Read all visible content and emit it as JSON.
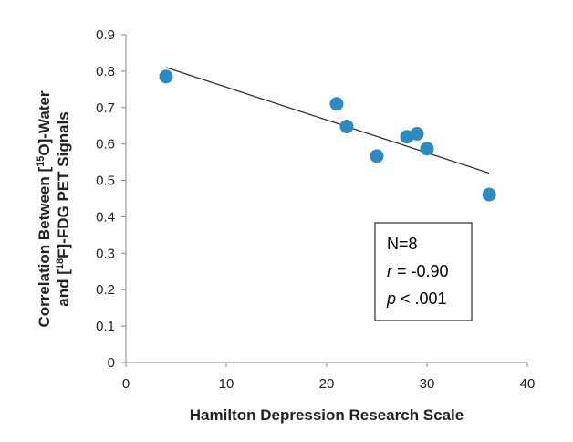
{
  "chart_data": {
    "type": "scatter",
    "title": "",
    "xlabel": "Hamilton Depression Research Scale",
    "ylabel": {
      "line1": [
        "Correlation Between [",
        "15",
        "O]-Water"
      ],
      "line2": [
        "and [",
        "18",
        "F]-FDG PET Signals"
      ]
    },
    "xlim": [
      0,
      40
    ],
    "ylim": [
      0,
      0.9
    ],
    "xticks": [
      "0",
      "10",
      "20",
      "30",
      "40"
    ],
    "yticks": [
      "0",
      "0.1",
      "0.2",
      "0.3",
      "0.4",
      "0.5",
      "0.6",
      "0.7",
      "0.8",
      "0.9"
    ],
    "points": [
      {
        "x": 4,
        "y": 0.785
      },
      {
        "x": 21,
        "y": 0.71
      },
      {
        "x": 22,
        "y": 0.648
      },
      {
        "x": 25,
        "y": 0.567
      },
      {
        "x": 28,
        "y": 0.62
      },
      {
        "x": 29,
        "y": 0.628
      },
      {
        "x": 30,
        "y": 0.587
      },
      {
        "x": 36.2,
        "y": 0.461
      }
    ],
    "trendline": {
      "x": [
        4,
        36.2
      ],
      "y": [
        0.81,
        0.52
      ]
    },
    "marker_color": "#2e8bc0",
    "trendline_color": "#333333",
    "grid": false,
    "legend": "none",
    "stats_box": {
      "n": "N=8",
      "r_symbol": "r",
      "r_value": " = -0.90",
      "p_symbol": "p",
      "p_value": " < .001"
    }
  }
}
